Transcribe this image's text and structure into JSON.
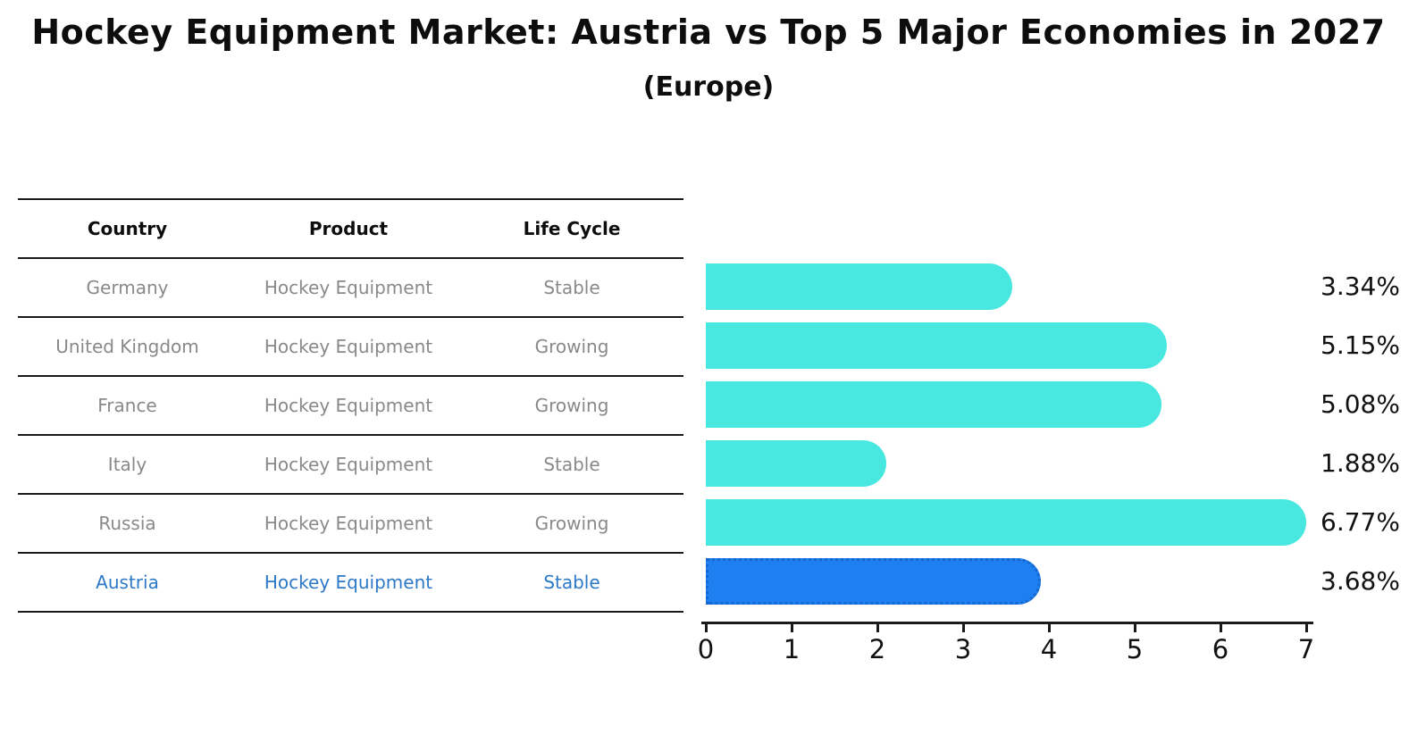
{
  "title": "Hockey Equipment Market: Austria vs Top 5 Major Economies in 2027",
  "subtitle": "(Europe)",
  "table": {
    "headers": [
      "Country",
      "Product",
      "Life Cycle"
    ],
    "rows": [
      {
        "country": "Germany",
        "product": "Hockey Equipment",
        "life_cycle": "Stable",
        "highlight": false
      },
      {
        "country": "United Kingdom",
        "product": "Hockey Equipment",
        "life_cycle": "Growing",
        "highlight": false
      },
      {
        "country": "France",
        "product": "Hockey Equipment",
        "life_cycle": "Growing",
        "highlight": false
      },
      {
        "country": "Italy",
        "product": "Hockey Equipment",
        "life_cycle": "Stable",
        "highlight": false
      },
      {
        "country": "Russia",
        "product": "Hockey Equipment",
        "life_cycle": "Growing",
        "highlight": false
      },
      {
        "country": "Austria",
        "product": "Hockey Equipment",
        "life_cycle": "Stable",
        "highlight": true
      }
    ]
  },
  "chart_data": {
    "type": "bar",
    "orientation": "horizontal",
    "categories": [
      "Germany",
      "United Kingdom",
      "France",
      "Italy",
      "Russia",
      "Austria"
    ],
    "values": [
      3.34,
      5.15,
      5.08,
      1.88,
      6.77,
      3.68
    ],
    "value_labels": [
      "3.34%",
      "5.15%",
      "5.08%",
      "1.88%",
      "6.77%",
      "3.68%"
    ],
    "highlight_index": 5,
    "x_ticks": [
      "0",
      "1",
      "2",
      "3",
      "4",
      "5",
      "6",
      "7"
    ],
    "xlim": [
      0,
      7
    ],
    "title": "Hockey Equipment Market: Austria vs Top 5 Major Economies in 2027 (Europe)",
    "xlabel": "",
    "ylabel": "",
    "grid": false,
    "legend": "none"
  },
  "colors": {
    "bar": "#48e8e1",
    "highlight_bar": "#1e7ff0",
    "highlight_border": "#1566ce",
    "highlight_text": "#2e79c7",
    "table_text": "#898989",
    "header_text": "#0d0d0d",
    "line": "#1a1a1a"
  }
}
